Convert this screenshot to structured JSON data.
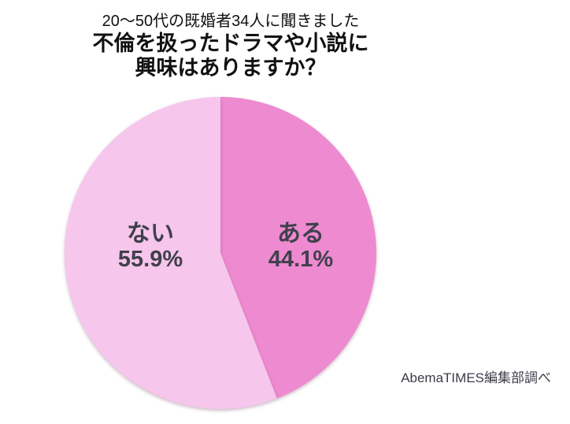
{
  "title": {
    "subtitle": "20〜50代の既婚者34人に聞きました",
    "line1": "不倫を扱ったドラマや小説に",
    "line2": "興味はありますか？"
  },
  "source": "AbemaTIMES編集部調べ",
  "colors": {
    "slice_aru": "#ee8ad0",
    "slice_nai": "#f6c6ec",
    "label_text": "#41404c",
    "title_text": "#111111"
  },
  "chart_data": {
    "type": "pie",
    "title": "20〜50代の既婚者34人に聞きました 不倫を扱ったドラマや小説に興味はありますか？",
    "start_angle_deg": 0,
    "direction": "clockwise",
    "legend_position": "none",
    "slices": [
      {
        "label": "ある",
        "value": 44.1,
        "pct_text": "44.1%",
        "color": "#ee8ad0"
      },
      {
        "label": "ない",
        "value": 55.9,
        "pct_text": "55.9%",
        "color": "#f6c6ec"
      }
    ],
    "source": "AbemaTIMES編集部調べ"
  }
}
